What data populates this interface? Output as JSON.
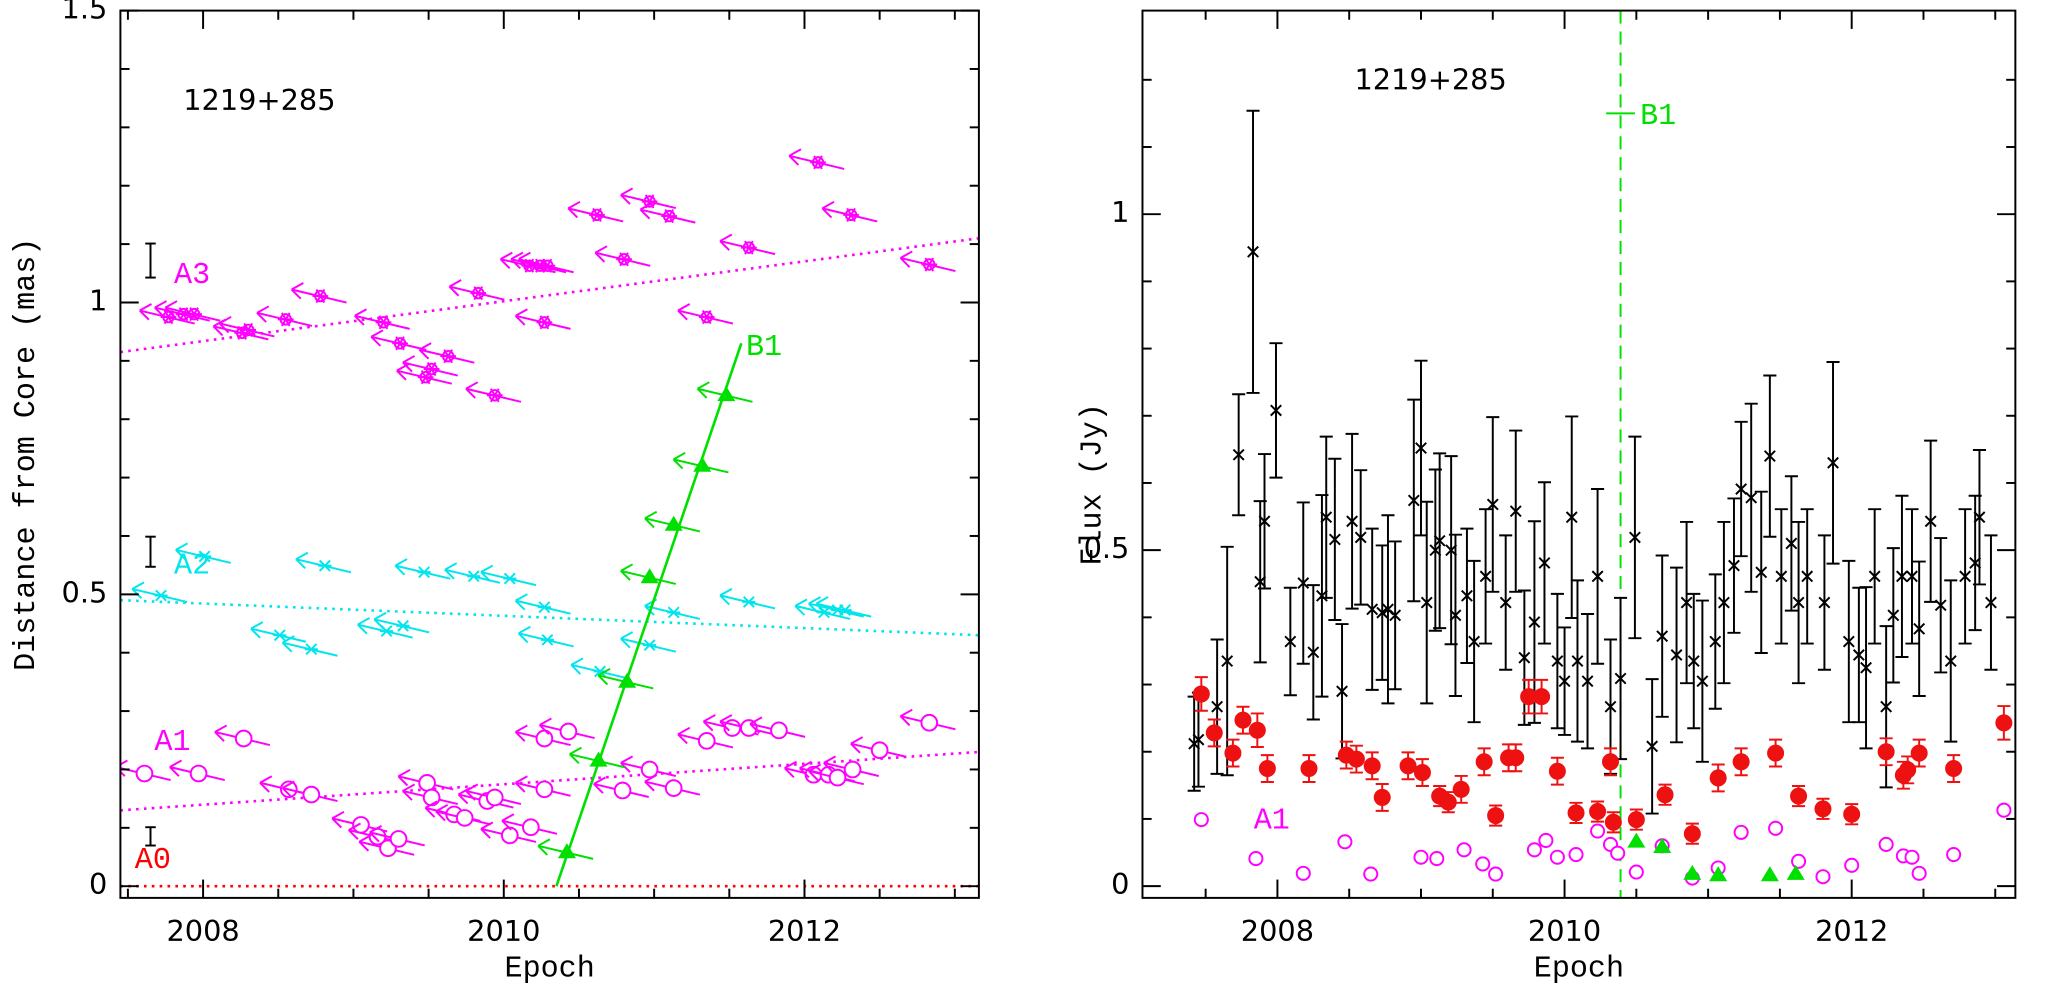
{
  "chart_data": [
    {
      "type": "scatter",
      "title": "1219+285",
      "x_label": "Epoch",
      "y_label": "Distance from Core (mas)",
      "xlim": [
        2007.45,
        2013.16
      ],
      "ylim": [
        -0.02,
        1.5
      ],
      "xticks": [
        2008,
        2010,
        2012
      ],
      "yticks": [
        0,
        0.5,
        1,
        1.5
      ],
      "xminorticks": [
        2007.5,
        2008.5,
        2009,
        2009.5,
        2010.5,
        2011,
        2011.5,
        2012.5,
        2013
      ],
      "yminorticks": [
        0.1,
        0.2,
        0.3,
        0.4,
        0.6,
        0.7,
        0.8,
        0.9,
        1.1,
        1.2,
        1.3,
        1.4
      ],
      "series": [
        {
          "name": "A3",
          "color": "#ff00ff",
          "marker": "star",
          "x": [
            2007.77,
            2007.87,
            2007.94,
            2008.26,
            2008.3,
            2008.55,
            2008.78,
            2009.2,
            2009.31,
            2009.48,
            2009.52,
            2009.63,
            2009.94,
            2009.83,
            2010.17,
            2010.24,
            2010.29,
            2010.27,
            2010.62,
            2010.8,
            2010.97,
            2011.1,
            2011.35,
            2011.63,
            2012.09,
            2012.31,
            2012.83
          ],
          "values": [
            0.975,
            0.98,
            0.98,
            0.948,
            0.953,
            0.971,
            1.011,
            0.966,
            0.93,
            0.872,
            0.886,
            0.908,
            0.841,
            1.016,
            1.063,
            1.063,
            1.063,
            0.966,
            1.15,
            1.074,
            1.173,
            1.148,
            0.975,
            1.094,
            1.24,
            1.15,
            1.065
          ],
          "fit": {
            "x": [
              2007.45,
              2013.16
            ],
            "values": [
              0.915,
              1.11
            ],
            "style": "dotted"
          }
        },
        {
          "name": "A2",
          "color": "#00e5ee",
          "marker": "cross",
          "x": [
            2007.72,
            2008.01,
            2008.51,
            2008.72,
            2008.81,
            2009.22,
            2009.33,
            2009.47,
            2009.8,
            2010.04,
            2010.27,
            2010.29,
            2010.64,
            2010.97,
            2011.13,
            2011.63,
            2012.13,
            2012.22,
            2012.27
          ],
          "values": [
            0.498,
            0.565,
            0.43,
            0.406,
            0.549,
            0.437,
            0.446,
            0.538,
            0.531,
            0.527,
            0.478,
            0.422,
            0.368,
            0.413,
            0.469,
            0.487,
            0.469,
            0.473,
            0.473
          ],
          "fit": {
            "x": [
              2007.45,
              2013.16
            ],
            "values": [
              0.49,
              0.43
            ],
            "style": "dotted"
          }
        },
        {
          "name": "A1",
          "color": "#ff00ff",
          "marker": "circle",
          "x": [
            2007.61,
            2007.97,
            2008.27,
            2008.57,
            2008.72,
            2009.05,
            2009.16,
            2009.23,
            2009.3,
            2009.49,
            2009.52,
            2009.67,
            2009.74,
            2009.89,
            2009.94,
            2010.04,
            2010.18,
            2010.27,
            2010.27,
            2010.43,
            2010.79,
            2010.97,
            2011.13,
            2011.35,
            2011.52,
            2011.63,
            2011.83,
            2012.06,
            2012.16,
            2012.22,
            2012.32,
            2012.5,
            2012.83
          ],
          "values": [
            0.193,
            0.193,
            0.253,
            0.166,
            0.157,
            0.105,
            0.085,
            0.065,
            0.081,
            0.177,
            0.152,
            0.123,
            0.117,
            0.146,
            0.152,
            0.087,
            0.101,
            0.166,
            0.253,
            0.265,
            0.164,
            0.2,
            0.168,
            0.249,
            0.271,
            0.271,
            0.267,
            0.191,
            0.191,
            0.186,
            0.2,
            0.233,
            0.28
          ],
          "fit": {
            "x": [
              2007.45,
              2013.16
            ],
            "values": [
              0.13,
              0.23
            ],
            "style": "dotted"
          }
        },
        {
          "name": "A0",
          "color": "#ff0000",
          "fit": {
            "x": [
              2007.45,
              2013.16
            ],
            "values": [
              0,
              0
            ],
            "style": "dotted"
          }
        },
        {
          "name": "B1",
          "color": "#00e000",
          "marker": "triangle",
          "x": [
            2010.42,
            2010.63,
            2010.82,
            2010.97,
            2011.13,
            2011.32,
            2011.48
          ],
          "values": [
            0.058,
            0.215,
            0.35,
            0.529,
            0.619,
            0.72,
            0.841
          ],
          "fit": {
            "x": [
              2010.35,
              2011.58
            ],
            "values": [
              0,
              0.93
            ],
            "style": "solid"
          }
        }
      ]
    },
    {
      "type": "scatter",
      "title": "1219+285",
      "x_label": "Epoch",
      "y_label": "Flux (Jy)",
      "xlim": [
        2007.06,
        2013.14
      ],
      "ylim": [
        -0.0175,
        1.303
      ],
      "xticks": [
        2008,
        2010,
        2012
      ],
      "yticks": [
        0,
        0.5,
        1
      ],
      "xminorticks": [
        2007.5,
        2008.5,
        2009,
        2009.5,
        2010.5,
        2011,
        2011.5,
        2012.5,
        2013
      ],
      "yminorticks": [
        0.1,
        0.2,
        0.3,
        0.4,
        0.6,
        0.7,
        0.8,
        0.9,
        1.1,
        1.2
      ],
      "vline": {
        "x": 2010.39,
        "label": "B1",
        "y": 1.15,
        "xerr": 0.1,
        "color": "#00e000"
      },
      "series": [
        {
          "color": "#000000",
          "marker": "x",
          "x": [
            2007.42,
            2007.45,
            2007.58,
            2007.65,
            2007.73,
            2007.83,
            2007.88,
            2007.91,
            2007.99,
            2008.09,
            2008.18,
            2008.25,
            2008.31,
            2008.34,
            2008.4,
            2008.45,
            2008.52,
            2008.58,
            2008.66,
            2008.73,
            2008.77,
            2008.82,
            2008.95,
            2009.0,
            2009.04,
            2009.1,
            2009.13,
            2009.21,
            2009.24,
            2009.32,
            2009.37,
            2009.45,
            2009.5,
            2009.59,
            2009.66,
            2009.72,
            2009.79,
            2009.86,
            2009.95,
            2010.0,
            2010.05,
            2010.09,
            2010.16,
            2010.23,
            2010.32,
            2010.39,
            2010.49,
            2010.61,
            2010.68,
            2010.78,
            2010.85,
            2010.9,
            2010.96,
            2011.05,
            2011.11,
            2011.18,
            2011.23,
            2011.3,
            2011.37,
            2011.43,
            2011.51,
            2011.58,
            2011.63,
            2011.69,
            2011.81,
            2011.87,
            2011.98,
            2012.05,
            2012.1,
            2012.16,
            2012.24,
            2012.29,
            2012.35,
            2012.42,
            2012.47,
            2012.55,
            2012.62,
            2012.69,
            2012.79,
            2012.86,
            2012.89,
            2012.97
          ],
          "values": [
            0.212,
            0.218,
            0.267,
            0.335,
            0.642,
            0.944,
            0.453,
            0.543,
            0.708,
            0.364,
            0.451,
            0.348,
            0.432,
            0.549,
            0.516,
            0.29,
            0.543,
            0.519,
            0.412,
            0.407,
            0.412,
            0.403,
            0.574,
            0.652,
            0.422,
            0.5,
            0.514,
            0.5,
            0.403,
            0.432,
            0.364,
            0.461,
            0.568,
            0.422,
            0.558,
            0.34,
            0.393,
            0.481,
            0.335,
            0.305,
            0.549,
            0.335,
            0.305,
            0.461,
            0.267,
            0.309,
            0.519,
            0.208,
            0.372,
            0.344,
            0.422,
            0.335,
            0.305,
            0.364,
            0.422,
            0.477,
            0.591,
            0.578,
            0.467,
            0.64,
            0.461,
            0.51,
            0.422,
            0.461,
            0.422,
            0.63,
            0.364,
            0.344,
            0.325,
            0.461,
            0.267,
            0.403,
            0.461,
            0.461,
            0.383,
            0.543,
            0.418,
            0.335,
            0.461,
            0.481,
            0.549,
            0.422
          ],
          "errors": [
            0.07,
            0.07,
            0.1,
            0.17,
            0.09,
            0.21,
            0.12,
            0.1,
            0.1,
            0.08,
            0.12,
            0.1,
            0.15,
            0.12,
            0.12,
            0.1,
            0.13,
            0.1,
            0.12,
            0.1,
            0.14,
            0.11,
            0.15,
            0.13,
            0.15,
            0.12,
            0.13,
            0.14,
            0.12,
            0.1,
            0.12,
            0.1,
            0.13,
            0.1,
            0.12,
            0.1,
            0.15,
            0.12,
            0.1,
            0.08,
            0.15,
            0.12,
            0.1,
            0.13,
            0.1,
            0.12,
            0.15,
            0.1,
            0.12,
            0.13,
            0.12,
            0.1,
            0.12,
            0.1,
            0.12,
            0.1,
            0.1,
            0.14,
            0.12,
            0.12,
            0.1,
            0.1,
            0.12,
            0.1,
            0.1,
            0.15,
            0.12,
            0.1,
            0.12,
            0.1,
            0.12,
            0.1,
            0.12,
            0.1,
            0.1,
            0.12,
            0.1,
            0.12,
            0.1,
            0.1,
            0.1,
            0.1
          ]
        },
        {
          "color": "#ee1111",
          "marker": "dot",
          "x": [
            2007.47,
            2007.56,
            2007.69,
            2007.76,
            2007.86,
            2007.93,
            2008.22,
            2008.48,
            2008.55,
            2008.66,
            2008.73,
            2008.91,
            2009.01,
            2009.13,
            2009.19,
            2009.28,
            2009.44,
            2009.52,
            2009.61,
            2009.66,
            2009.75,
            2009.84,
            2009.95,
            2010.08,
            2010.23,
            2010.34,
            2010.32,
            2010.5,
            2010.7,
            2010.89,
            2011.07,
            2011.23,
            2011.47,
            2011.63,
            2011.8,
            2012.0,
            2012.24,
            2012.36,
            2012.39,
            2012.47,
            2012.71,
            2013.06
          ],
          "values": [
            0.286,
            0.228,
            0.198,
            0.247,
            0.232,
            0.175,
            0.175,
            0.195,
            0.189,
            0.179,
            0.132,
            0.179,
            0.169,
            0.134,
            0.125,
            0.144,
            0.185,
            0.105,
            0.191,
            0.191,
            0.282,
            0.282,
            0.171,
            0.109,
            0.111,
            0.095,
            0.185,
            0.099,
            0.136,
            0.078,
            0.161,
            0.185,
            0.198,
            0.134,
            0.115,
            0.107,
            0.2,
            0.165,
            0.173,
            0.198,
            0.175,
            0.243
          ],
          "errors": [
            0.025,
            0.02,
            0.02,
            0.02,
            0.025,
            0.02,
            0.02,
            0.02,
            0.02,
            0.02,
            0.02,
            0.02,
            0.02,
            0.015,
            0.015,
            0.02,
            0.02,
            0.015,
            0.02,
            0.02,
            0.025,
            0.025,
            0.02,
            0.015,
            0.015,
            0.015,
            0.02,
            0.015,
            0.015,
            0.015,
            0.02,
            0.02,
            0.02,
            0.015,
            0.015,
            0.015,
            0.02,
            0.02,
            0.02,
            0.02,
            0.02,
            0.025
          ]
        },
        {
          "name": "A1",
          "color": "#ff00ff",
          "marker": "circle",
          "x": [
            2007.47,
            2007.85,
            2008.18,
            2008.47,
            2008.65,
            2009.0,
            2009.11,
            2009.3,
            2009.43,
            2009.52,
            2009.79,
            2009.87,
            2009.95,
            2010.08,
            2010.23,
            2010.32,
            2010.37,
            2010.5,
            2010.68,
            2010.89,
            2011.07,
            2011.23,
            2011.47,
            2011.63,
            2011.8,
            2012.0,
            2012.24,
            2012.36,
            2012.42,
            2012.47,
            2012.71,
            2013.06
          ],
          "values": [
            0.099,
            0.041,
            0.019,
            0.066,
            0.018,
            0.043,
            0.041,
            0.054,
            0.033,
            0.018,
            0.054,
            0.068,
            0.043,
            0.047,
            0.082,
            0.062,
            0.049,
            0.021,
            0.06,
            0.012,
            0.027,
            0.08,
            0.086,
            0.037,
            0.014,
            0.031,
            0.062,
            0.045,
            0.043,
            0.019,
            0.047,
            0.113
          ]
        },
        {
          "color": "#00e000",
          "marker": "triangle",
          "x": [
            2010.5,
            2010.68,
            2010.89,
            2011.07,
            2011.43,
            2011.61
          ],
          "values": [
            0.066,
            0.058,
            0.018,
            0.016,
            0.016,
            0.018
          ]
        }
      ]
    }
  ]
}
